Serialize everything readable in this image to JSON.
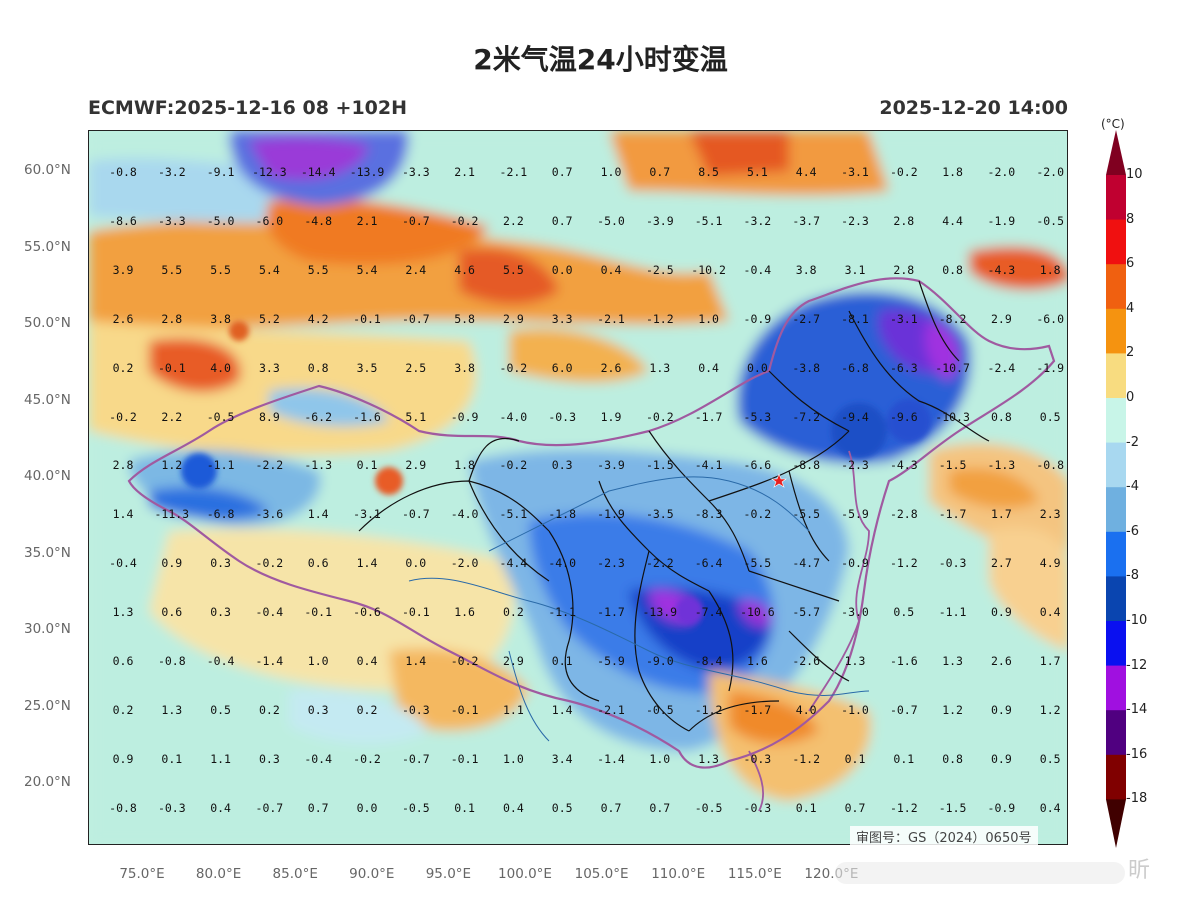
{
  "title": "2米气温24小时变温",
  "subtitle_left": "ECMWF:2025-12-16 08 +102H",
  "subtitle_right": "2025-12-20 14:00",
  "approval_number": "审图号：GS（2024）0650号",
  "watermark": "昕",
  "lat_labels": [
    "60.0°N",
    "55.0°N",
    "50.0°N",
    "45.0°N",
    "40.0°N",
    "35.0°N",
    "30.0°N",
    "25.0°N",
    "20.0°N"
  ],
  "lon_labels": [
    "75.0°E",
    "80.0°E",
    "85.0°E",
    "90.0°E",
    "95.0°E",
    "100.0°E",
    "105.0°E",
    "110.0°E",
    "115.0°E",
    "120.0°E"
  ],
  "colorbar": {
    "unit": "(°C)",
    "labels": [
      "10",
      "8",
      "6",
      "4",
      "2",
      "0",
      "-2",
      "-4",
      "-6",
      "-8",
      "-10",
      "-12",
      "-14",
      "-16",
      "-18"
    ],
    "colors": [
      "#800020",
      "#c00030",
      "#f01010",
      "#f06010",
      "#f59310",
      "#f8dc80",
      "#c8f5e8",
      "#a8d8f0",
      "#6fb0e0",
      "#1a70f0",
      "#0a45b0",
      "#0a10f0",
      "#a010e0",
      "#500080",
      "#800000",
      "#400000"
    ]
  },
  "grid_values": [
    [
      "-0.8",
      "-3.2",
      "-9.1",
      "-12.3",
      "-14.4",
      "-13.9",
      "-3.3",
      "2.1",
      "-2.1",
      "0.7",
      "1.0",
      "0.7",
      "8.5",
      "5.1",
      "4.4",
      "-3.1",
      "-0.2",
      "1.8",
      "-2.0",
      "-2.0"
    ],
    [
      "-8.6",
      "-3.3",
      "-5.0",
      "-6.0",
      "-4.8",
      "2.1",
      "-0.7",
      "-0.2",
      "2.2",
      "0.7",
      "-5.0",
      "-3.9",
      "-5.1",
      "-3.2",
      "-3.7",
      "-2.3",
      "2.8",
      "4.4",
      "-1.9",
      "-0.5"
    ],
    [
      "3.9",
      "5.5",
      "5.5",
      "5.4",
      "5.5",
      "5.4",
      "2.4",
      "4.6",
      "5.5",
      "0.0",
      "0.4",
      "-2.5",
      "-10.2",
      "-0.4",
      "3.8",
      "3.1",
      "2.8",
      "0.8",
      "-4.3",
      "1.8"
    ],
    [
      "2.6",
      "2.8",
      "3.8",
      "5.2",
      "4.2",
      "-0.1",
      "-0.7",
      "5.8",
      "2.9",
      "3.3",
      "-2.1",
      "-1.2",
      "1.0",
      "-0.9",
      "-2.7",
      "-8.1",
      "-3.1",
      "-8.2",
      "2.9",
      "-6.0"
    ],
    [
      "0.2",
      "-0.1",
      "4.0",
      "3.3",
      "0.8",
      "3.5",
      "2.5",
      "3.8",
      "-0.2",
      "6.0",
      "2.6",
      "1.3",
      "0.4",
      "0.0",
      "-3.8",
      "-6.8",
      "-6.3",
      "-10.7",
      "-2.4",
      "-1.9"
    ],
    [
      "-0.2",
      "2.2",
      "-0.5",
      "8.9",
      "-6.2",
      "-1.6",
      "5.1",
      "-0.9",
      "-4.0",
      "-0.3",
      "1.9",
      "-0.2",
      "-1.7",
      "-5.3",
      "-7.2",
      "-9.4",
      "-9.6",
      "-10.3",
      "0.8",
      "0.5"
    ],
    [
      "2.8",
      "1.2",
      "-1.1",
      "-2.2",
      "-1.3",
      "0.1",
      "2.9",
      "1.8",
      "-0.2",
      "0.3",
      "-3.9",
      "-1.5",
      "-4.1",
      "-6.6",
      "-8.8",
      "-2.3",
      "-4.3",
      "-1.5",
      "-1.3",
      "-0.8"
    ],
    [
      "1.4",
      "-11.3",
      "-6.8",
      "-3.6",
      "1.4",
      "-3.1",
      "-0.7",
      "-4.0",
      "-5.1",
      "-1.8",
      "-1.9",
      "-3.5",
      "-8.3",
      "-0.2",
      "-5.5",
      "-5.9",
      "-2.8",
      "-1.7",
      "1.7",
      "2.3"
    ],
    [
      "-0.4",
      "0.9",
      "0.3",
      "-0.2",
      "0.6",
      "1.4",
      "0.0",
      "-2.0",
      "-4.4",
      "-4.0",
      "-2.3",
      "-2.2",
      "-6.4",
      "-5.5",
      "-4.7",
      "-0.9",
      "-1.2",
      "-0.3",
      "2.7",
      "4.9"
    ],
    [
      "1.3",
      "0.6",
      "0.3",
      "-0.4",
      "-0.1",
      "-0.6",
      "-0.1",
      "1.6",
      "0.2",
      "-1.1",
      "-1.7",
      "-13.9",
      "-7.4",
      "-10.6",
      "-5.7",
      "-3.0",
      "0.5",
      "-1.1",
      "0.9",
      "0.4"
    ],
    [
      "0.6",
      "-0.8",
      "-0.4",
      "-1.4",
      "1.0",
      "0.4",
      "1.4",
      "-0.2",
      "2.9",
      "0.1",
      "-5.9",
      "-9.0",
      "-8.4",
      "1.6",
      "-2.6",
      "1.3",
      "-1.6",
      "1.3",
      "2.6",
      "1.7"
    ],
    [
      "0.2",
      "1.3",
      "0.5",
      "0.2",
      "0.3",
      "0.2",
      "-0.3",
      "-0.1",
      "1.1",
      "1.4",
      "-2.1",
      "-0.5",
      "-1.2",
      "-1.7",
      "4.0",
      "-1.0",
      "-0.7",
      "1.2",
      "0.9",
      "1.2"
    ],
    [
      "0.9",
      "0.1",
      "1.1",
      "0.3",
      "-0.4",
      "-0.2",
      "-0.7",
      "-0.1",
      "1.0",
      "3.4",
      "-1.4",
      "1.0",
      "1.3",
      "-0.3",
      "-1.2",
      "0.1",
      "0.1",
      "0.8",
      "0.9",
      "0.5"
    ],
    [
      "-0.8",
      "-0.3",
      "0.4",
      "-0.7",
      "0.7",
      "0.0",
      "-0.5",
      "0.1",
      "0.4",
      "0.5",
      "0.7",
      "0.7",
      "-0.5",
      "-0.3",
      "0.1",
      "0.7",
      "-1.2",
      "-1.5",
      "-0.9",
      "0.4"
    ]
  ],
  "marker_icon": "star-marker-icon"
}
